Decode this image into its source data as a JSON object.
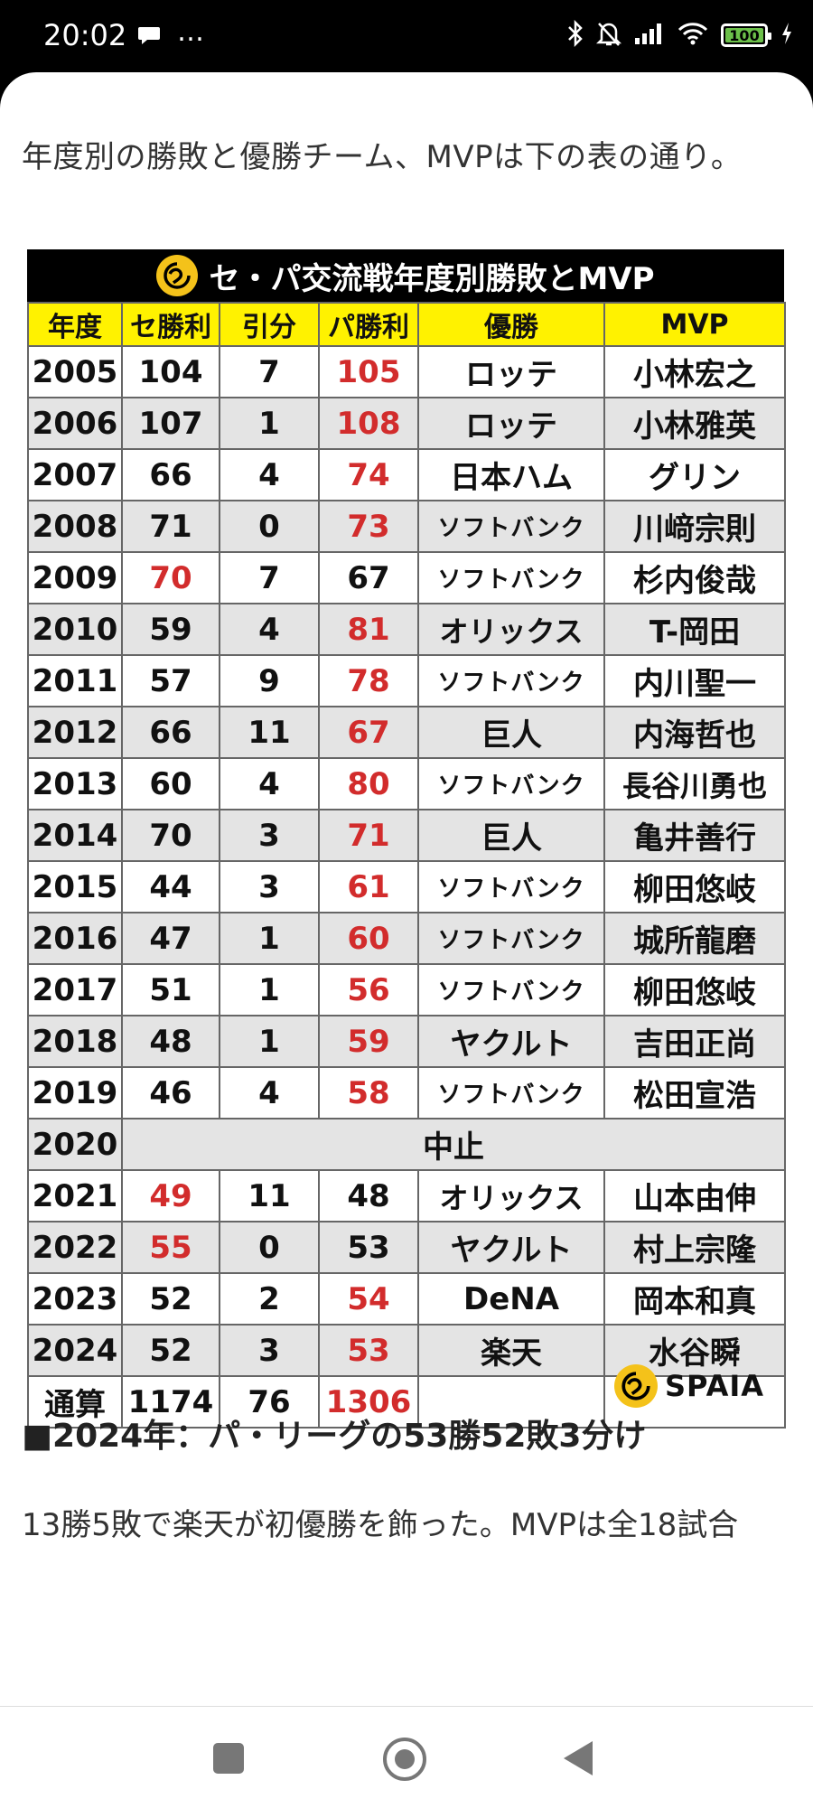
{
  "status_bar": {
    "time": "20:02",
    "more": "…",
    "battery": "100",
    "icons": [
      "chat-bubble-icon",
      "bluetooth-icon",
      "bell-off-icon",
      "signal-icon",
      "wifi-icon",
      "battery-icon",
      "charging-icon"
    ]
  },
  "article": {
    "intro": "年度別の勝敗と優勝チーム、MVPは下の表の通り。",
    "table_title": "セ・パ交流戦年度別勝敗とMVP",
    "columns": [
      "年度",
      "セ勝利",
      "引分",
      "パ勝利",
      "優勝",
      "MVP"
    ],
    "rows": [
      {
        "year": "2005",
        "ce": "104",
        "draw": "7",
        "pa": "105",
        "champion": "ロッテ",
        "mvp": "小林宏之",
        "winner": "pa"
      },
      {
        "year": "2006",
        "ce": "107",
        "draw": "1",
        "pa": "108",
        "champion": "ロッテ",
        "mvp": "小林雅英",
        "winner": "pa"
      },
      {
        "year": "2007",
        "ce": "66",
        "draw": "4",
        "pa": "74",
        "champion": "日本ハム",
        "mvp": "グリン",
        "winner": "pa"
      },
      {
        "year": "2008",
        "ce": "71",
        "draw": "0",
        "pa": "73",
        "champion": "ソフトバンク",
        "mvp": "川﨑宗則",
        "winner": "pa"
      },
      {
        "year": "2009",
        "ce": "70",
        "draw": "7",
        "pa": "67",
        "champion": "ソフトバンク",
        "mvp": "杉内俊哉",
        "winner": "ce"
      },
      {
        "year": "2010",
        "ce": "59",
        "draw": "4",
        "pa": "81",
        "champion": "オリックス",
        "mvp": "T-岡田",
        "winner": "pa"
      },
      {
        "year": "2011",
        "ce": "57",
        "draw": "9",
        "pa": "78",
        "champion": "ソフトバンク",
        "mvp": "内川聖一",
        "winner": "pa"
      },
      {
        "year": "2012",
        "ce": "66",
        "draw": "11",
        "pa": "67",
        "champion": "巨人",
        "mvp": "内海哲也",
        "winner": "pa"
      },
      {
        "year": "2013",
        "ce": "60",
        "draw": "4",
        "pa": "80",
        "champion": "ソフトバンク",
        "mvp": "長谷川勇也",
        "winner": "pa"
      },
      {
        "year": "2014",
        "ce": "70",
        "draw": "3",
        "pa": "71",
        "champion": "巨人",
        "mvp": "亀井善行",
        "winner": "pa"
      },
      {
        "year": "2015",
        "ce": "44",
        "draw": "3",
        "pa": "61",
        "champion": "ソフトバンク",
        "mvp": "柳田悠岐",
        "winner": "pa"
      },
      {
        "year": "2016",
        "ce": "47",
        "draw": "1",
        "pa": "60",
        "champion": "ソフトバンク",
        "mvp": "城所龍磨",
        "winner": "pa"
      },
      {
        "year": "2017",
        "ce": "51",
        "draw": "1",
        "pa": "56",
        "champion": "ソフトバンク",
        "mvp": "柳田悠岐",
        "winner": "pa"
      },
      {
        "year": "2018",
        "ce": "48",
        "draw": "1",
        "pa": "59",
        "champion": "ヤクルト",
        "mvp": "吉田正尚",
        "winner": "pa"
      },
      {
        "year": "2019",
        "ce": "46",
        "draw": "4",
        "pa": "58",
        "champion": "ソフトバンク",
        "mvp": "松田宣浩",
        "winner": "pa"
      },
      {
        "year": "2020",
        "cancelled": "中止"
      },
      {
        "year": "2021",
        "ce": "49",
        "draw": "11",
        "pa": "48",
        "champion": "オリックス",
        "mvp": "山本由伸",
        "winner": "ce"
      },
      {
        "year": "2022",
        "ce": "55",
        "draw": "0",
        "pa": "53",
        "champion": "ヤクルト",
        "mvp": "村上宗隆",
        "winner": "ce"
      },
      {
        "year": "2023",
        "ce": "52",
        "draw": "2",
        "pa": "54",
        "champion": "DeNA",
        "mvp": "岡本和真",
        "winner": "pa"
      },
      {
        "year": "2024",
        "ce": "52",
        "draw": "3",
        "pa": "53",
        "champion": "楽天",
        "mvp": "水谷瞬",
        "winner": "pa"
      }
    ],
    "total": {
      "label": "通算",
      "ce": "1174",
      "draw": "76",
      "pa": "1306",
      "champion": "",
      "mvp": ""
    },
    "brand": "SPAIA",
    "section_heading": "■2024年：パ・リーグの53勝52敗3分け",
    "body": "13勝5敗で楽天が初優勝を飾った。MVPは全18試合"
  },
  "colors": {
    "header_yellow": "#fff200",
    "winner_red": "#d22c2c",
    "row_gray": "#e4e4e4",
    "logo_yellow": "#f4c21a"
  }
}
